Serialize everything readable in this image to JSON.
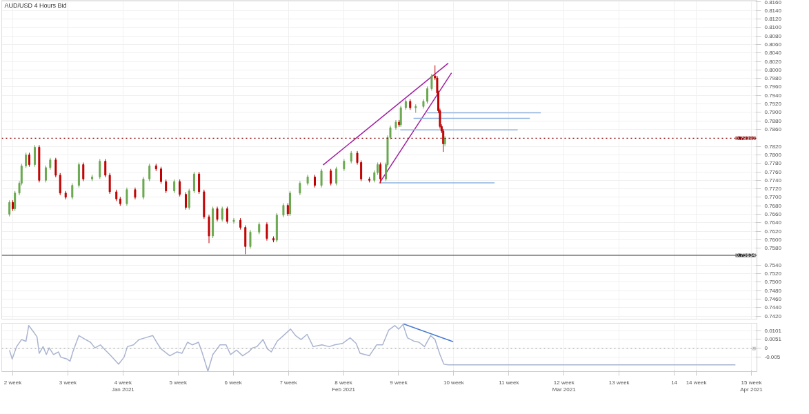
{
  "chart_data": [
    {
      "type": "candlestick",
      "title": "AUD/USD  4 Hours Bid",
      "x": [
        1.94,
        2.0,
        2.04,
        2.12,
        2.16,
        2.24,
        2.3,
        2.4,
        2.48,
        2.6,
        2.68,
        2.78,
        2.86,
        2.96,
        3.08,
        3.2,
        3.28,
        3.44,
        3.58,
        3.68,
        3.76,
        3.88,
        3.95,
        4.07,
        4.22,
        4.37,
        4.48,
        4.6,
        4.69,
        4.78,
        4.93,
        5.03,
        5.14,
        5.2,
        5.29,
        5.38,
        5.47,
        5.56,
        5.63,
        5.71,
        5.8,
        5.89,
        6.01,
        6.13,
        6.22,
        6.31,
        6.47,
        6.61,
        6.73,
        6.79,
        6.91,
        6.99,
        7.03,
        7.21,
        7.35,
        7.48,
        7.6,
        7.77,
        7.87,
        8.01,
        8.14,
        8.25,
        8.32,
        8.47,
        8.56,
        8.62,
        8.67,
        8.77,
        8.8,
        8.85,
        8.95,
        9.01,
        9.04,
        9.13,
        9.21,
        9.31,
        9.45,
        9.52,
        9.6,
        9.66,
        9.7,
        9.72,
        9.75,
        9.78,
        9.81,
        9.84
      ],
      "ohlc": [
        [
          0.766,
          0.7693,
          0.7655,
          0.7688
        ],
        [
          0.7688,
          0.7693,
          0.7668,
          0.7673
        ],
        [
          0.7673,
          0.7715,
          0.7668,
          0.771
        ],
        [
          0.771,
          0.7738,
          0.7705,
          0.7733
        ],
        [
          0.7733,
          0.7779,
          0.7728,
          0.7774
        ],
        [
          0.7774,
          0.7805,
          0.7769,
          0.78
        ],
        [
          0.78,
          0.7805,
          0.7772,
          0.7777
        ],
        [
          0.7777,
          0.7823,
          0.7772,
          0.7818
        ],
        [
          0.7818,
          0.7823,
          0.7735,
          0.774
        ],
        [
          0.774,
          0.7775,
          0.7735,
          0.777
        ],
        [
          0.777,
          0.7793,
          0.7765,
          0.7788
        ],
        [
          0.7788,
          0.7793,
          0.7747,
          0.7752
        ],
        [
          0.7752,
          0.7757,
          0.7705,
          0.771
        ],
        [
          0.771,
          0.7715,
          0.7695,
          0.77
        ],
        [
          0.77,
          0.7733,
          0.7695,
          0.7728
        ],
        [
          0.7728,
          0.7782,
          0.7723,
          0.7777
        ],
        [
          0.7777,
          0.7782,
          0.7738,
          0.7743
        ],
        [
          0.7743,
          0.7753,
          0.7738,
          0.7748
        ],
        [
          0.7748,
          0.779,
          0.7743,
          0.7785
        ],
        [
          0.7785,
          0.779,
          0.7747,
          0.7752
        ],
        [
          0.7752,
          0.7757,
          0.7708,
          0.7713
        ],
        [
          0.7713,
          0.7718,
          0.7691,
          0.7696
        ],
        [
          0.7696,
          0.7701,
          0.768,
          0.7685
        ],
        [
          0.7685,
          0.7723,
          0.768,
          0.7718
        ],
        [
          0.7718,
          0.7723,
          0.7695,
          0.77
        ],
        [
          0.77,
          0.7748,
          0.7695,
          0.7743
        ],
        [
          0.7743,
          0.7779,
          0.7738,
          0.7774
        ],
        [
          0.7774,
          0.7779,
          0.7762,
          0.7767
        ],
        [
          0.7767,
          0.7772,
          0.7732,
          0.7737
        ],
        [
          0.7737,
          0.7742,
          0.771,
          0.7715
        ],
        [
          0.7715,
          0.7742,
          0.771,
          0.7737
        ],
        [
          0.7737,
          0.7742,
          0.7702,
          0.7707
        ],
        [
          0.7707,
          0.7712,
          0.7671,
          0.7676
        ],
        [
          0.7676,
          0.772,
          0.7671,
          0.7715
        ],
        [
          0.7715,
          0.776,
          0.771,
          0.7755
        ],
        [
          0.7755,
          0.776,
          0.7708,
          0.7713
        ],
        [
          0.7713,
          0.7718,
          0.7649,
          0.7654
        ],
        [
          0.7654,
          0.7659,
          0.7592,
          0.7609
        ],
        [
          0.7609,
          0.7678,
          0.7604,
          0.7673
        ],
        [
          0.7673,
          0.7678,
          0.7643,
          0.7648
        ],
        [
          0.7648,
          0.7678,
          0.7643,
          0.7673
        ],
        [
          0.7673,
          0.7678,
          0.7638,
          0.7643
        ],
        [
          0.7643,
          0.7651,
          0.7638,
          0.7646
        ],
        [
          0.7646,
          0.7651,
          0.7624,
          0.7629
        ],
        [
          0.7629,
          0.7634,
          0.7566,
          0.7584
        ],
        [
          0.7584,
          0.7623,
          0.7579,
          0.7618
        ],
        [
          0.7618,
          0.7641,
          0.7613,
          0.7636
        ],
        [
          0.7636,
          0.7641,
          0.7598,
          0.7603
        ],
        [
          0.7603,
          0.7608,
          0.7594,
          0.7599
        ],
        [
          0.7599,
          0.7663,
          0.7594,
          0.7658
        ],
        [
          0.7658,
          0.7686,
          0.7653,
          0.7681
        ],
        [
          0.7681,
          0.7686,
          0.7656,
          0.7661
        ],
        [
          0.7661,
          0.7715,
          0.7656,
          0.771
        ],
        [
          0.771,
          0.7738,
          0.7705,
          0.7733
        ],
        [
          0.7733,
          0.7753,
          0.7728,
          0.7748
        ],
        [
          0.7748,
          0.7753,
          0.7723,
          0.7728
        ],
        [
          0.7728,
          0.7767,
          0.7723,
          0.7762
        ],
        [
          0.7762,
          0.7767,
          0.7728,
          0.7733
        ],
        [
          0.7733,
          0.7772,
          0.7728,
          0.7767
        ],
        [
          0.7767,
          0.779,
          0.7762,
          0.7785
        ],
        [
          0.7785,
          0.7809,
          0.778,
          0.7804
        ],
        [
          0.7804,
          0.7809,
          0.7777,
          0.7782
        ],
        [
          0.7782,
          0.7787,
          0.7738,
          0.7743
        ],
        [
          0.7743,
          0.7748,
          0.7735,
          0.774
        ],
        [
          0.774,
          0.7763,
          0.7735,
          0.7758
        ],
        [
          0.7758,
          0.7782,
          0.7753,
          0.7777
        ],
        [
          0.7777,
          0.7782,
          0.7733,
          0.7743
        ],
        [
          0.7743,
          0.7782,
          0.7738,
          0.7777
        ],
        [
          0.7777,
          0.7846,
          0.7772,
          0.7841
        ],
        [
          0.7841,
          0.7869,
          0.7836,
          0.7864
        ],
        [
          0.7864,
          0.7882,
          0.7859,
          0.7877
        ],
        [
          0.7877,
          0.7882,
          0.7866,
          0.7871
        ],
        [
          0.7871,
          0.7916,
          0.7866,
          0.7911
        ],
        [
          0.7911,
          0.7931,
          0.7906,
          0.7926
        ],
        [
          0.7926,
          0.7931,
          0.7906,
          0.7911
        ],
        [
          0.7911,
          0.7919,
          0.7899,
          0.7914
        ],
        [
          0.7914,
          0.7931,
          0.7909,
          0.7926
        ],
        [
          0.7926,
          0.7961,
          0.7921,
          0.7956
        ],
        [
          0.7956,
          0.7991,
          0.7951,
          0.7986
        ],
        [
          0.7986,
          0.8011,
          0.7976,
          0.7981
        ],
        [
          0.7981,
          0.7986,
          0.7941,
          0.7946
        ],
        [
          0.7946,
          0.7951,
          0.7899,
          0.7904
        ],
        [
          0.7904,
          0.7909,
          0.7862,
          0.7867
        ],
        [
          0.7867,
          0.7872,
          0.7851,
          0.7856
        ],
        [
          0.7856,
          0.7861,
          0.7807,
          0.7826
        ],
        [
          0.7826,
          0.7844,
          0.7821,
          0.7839
        ]
      ],
      "colors": [
        "#6aa84f",
        "#c00000",
        "#6aa84f",
        "#6aa84f",
        "#6aa84f",
        "#6aa84f",
        "#c00000",
        "#6aa84f",
        "#c00000",
        "#6aa84f",
        "#6aa84f",
        "#c00000",
        "#c00000",
        "#c00000",
        "#6aa84f",
        "#6aa84f",
        "#c00000",
        "#6aa84f",
        "#6aa84f",
        "#c00000",
        "#c00000",
        "#c00000",
        "#c00000",
        "#6aa84f",
        "#c00000",
        "#6aa84f",
        "#6aa84f",
        "#c00000",
        "#c00000",
        "#c00000",
        "#6aa84f",
        "#c00000",
        "#c00000",
        "#6aa84f",
        "#6aa84f",
        "#c00000",
        "#c00000",
        "#c00000",
        "#6aa84f",
        "#c00000",
        "#6aa84f",
        "#c00000",
        "#6aa84f",
        "#c00000",
        "#c00000",
        "#6aa84f",
        "#6aa84f",
        "#c00000",
        "#c00000",
        "#6aa84f",
        "#6aa84f",
        "#c00000",
        "#6aa84f",
        "#6aa84f",
        "#6aa84f",
        "#c00000",
        "#6aa84f",
        "#c00000",
        "#6aa84f",
        "#6aa84f",
        "#6aa84f",
        "#c00000",
        "#c00000",
        "#c00000",
        "#6aa84f",
        "#6aa84f",
        "#c00000",
        "#6aa84f",
        "#6aa84f",
        "#6aa84f",
        "#6aa84f",
        "#c00000",
        "#6aa84f",
        "#6aa84f",
        "#c00000",
        "#6aa84f",
        "#6aa84f",
        "#6aa84f",
        "#6aa84f",
        "#c00000",
        "#c00000",
        "#c00000",
        "#c00000",
        "#c00000",
        "#c00000",
        "#6aa84f"
      ],
      "series": [
        {
          "type": "line",
          "color": "#a020a0",
          "x": [
            7.63,
            9.9
          ],
          "values": [
            0.7776,
            0.8016
          ]
        },
        {
          "type": "line",
          "color": "#a020a0",
          "x": [
            8.65,
            9.96
          ],
          "values": [
            0.7733,
            0.7993
          ]
        },
        {
          "type": "line",
          "color": "#8fb3e0",
          "x": [
            8.65,
            10.74
          ],
          "values": [
            0.7734,
            0.7734
          ]
        },
        {
          "type": "line",
          "color": "#8fb3e0",
          "x": [
            9.03,
            11.16
          ],
          "values": [
            0.7859,
            0.7859
          ]
        },
        {
          "type": "line",
          "color": "#8fb3e0",
          "x": [
            9.27,
            11.38
          ],
          "values": [
            0.7886,
            0.7886
          ]
        },
        {
          "type": "line",
          "color": "#8fb3e0",
          "x": [
            9.51,
            11.58
          ],
          "values": [
            0.7899,
            0.7899
          ]
        }
      ],
      "ref_lines": [
        {
          "axis": "y",
          "value": 0.75634,
          "label": "0.75634",
          "color": "#333333",
          "line_style": "solid"
        },
        {
          "axis": "y",
          "value": 0.78392,
          "label": "0.78392",
          "color": "#8b0000",
          "line_style": "dotted"
        }
      ],
      "xlim": [
        1.8,
        15.5
      ],
      "ylim": [
        0.7413,
        0.8164
      ],
      "xticks": [
        {
          "value": 2,
          "label": null
        },
        {
          "value": 3,
          "label": null
        },
        {
          "value": 4,
          "label": null
        },
        {
          "value": 5,
          "label": null
        },
        {
          "value": 6,
          "label": null
        },
        {
          "value": 7,
          "label": null
        },
        {
          "value": 8,
          "label": null
        },
        {
          "value": 9,
          "label": null
        },
        {
          "value": 10,
          "label": null
        },
        {
          "value": 11,
          "label": null
        },
        {
          "value": 12,
          "label": null
        },
        {
          "value": 13,
          "label": null
        },
        {
          "value": 14,
          "label": null
        },
        {
          "value": 14.4,
          "label": null
        },
        {
          "value": 15.4,
          "label": null
        }
      ],
      "yticks": [
        {
          "value": 0.742,
          "label": "0.7420"
        },
        {
          "value": 0.744,
          "label": "0.7440"
        },
        {
          "value": 0.746,
          "label": "0.7460"
        },
        {
          "value": 0.748,
          "label": "0.7480"
        },
        {
          "value": 0.75,
          "label": "0.7500"
        },
        {
          "value": 0.752,
          "label": "0.7520"
        },
        {
          "value": 0.754,
          "label": "0.7540"
        },
        {
          "value": 0.758,
          "label": "0.7580"
        },
        {
          "value": 0.76,
          "label": "0.7600"
        },
        {
          "value": 0.762,
          "label": "0.7620"
        },
        {
          "value": 0.764,
          "label": "0.7640"
        },
        {
          "value": 0.766,
          "label": "0.7660"
        },
        {
          "value": 0.768,
          "label": "0.7680"
        },
        {
          "value": 0.77,
          "label": "0.7700"
        },
        {
          "value": 0.772,
          "label": "0.7720"
        },
        {
          "value": 0.774,
          "label": "0.7740"
        },
        {
          "value": 0.776,
          "label": "0.7760"
        },
        {
          "value": 0.778,
          "label": "0.7780"
        },
        {
          "value": 0.78,
          "label": "0.7800"
        },
        {
          "value": 0.782,
          "label": "0.7820"
        },
        {
          "value": 0.786,
          "label": "0.7860"
        },
        {
          "value": 0.788,
          "label": "0.7880"
        },
        {
          "value": 0.79,
          "label": "0.7900"
        },
        {
          "value": 0.792,
          "label": "0.7920"
        },
        {
          "value": 0.794,
          "label": "0.7940"
        },
        {
          "value": 0.796,
          "label": "0.7960"
        },
        {
          "value": 0.798,
          "label": "0.7980"
        },
        {
          "value": 0.8,
          "label": "0.8000"
        },
        {
          "value": 0.802,
          "label": "0.8020"
        },
        {
          "value": 0.804,
          "label": "0.8040"
        },
        {
          "value": 0.806,
          "label": "0.8060"
        },
        {
          "value": 0.808,
          "label": "0.8080"
        },
        {
          "value": 0.81,
          "label": "0.8100"
        },
        {
          "value": 0.812,
          "label": "0.8120"
        },
        {
          "value": 0.814,
          "label": "0.8140"
        },
        {
          "value": 0.816,
          "label": "0.8160"
        }
      ],
      "grid": true,
      "tick_labels": "y"
    },
    {
      "type": "line",
      "series": [
        {
          "color": "#a9b4d0",
          "x": [
            1.94,
            1.99,
            2.07,
            2.16,
            2.24,
            2.29,
            2.37,
            2.44,
            2.48,
            2.55,
            2.61,
            2.66,
            2.74,
            2.83,
            2.87,
            2.98,
            3.04,
            3.09,
            3.2,
            3.31,
            3.41,
            3.49,
            3.59,
            3.68,
            3.78,
            3.92,
            4.02,
            4.08,
            4.19,
            4.29,
            4.4,
            4.54,
            4.61,
            4.69,
            4.85,
            4.98,
            5.07,
            5.17,
            5.26,
            5.37,
            5.44,
            5.54,
            5.63,
            5.76,
            5.87,
            5.95,
            6.06,
            6.17,
            6.28,
            6.35,
            6.43,
            6.54,
            6.62,
            6.69,
            6.8,
            6.91,
            7.04,
            7.13,
            7.23,
            7.34,
            7.45,
            7.61,
            7.74,
            7.84,
            7.98,
            8.12,
            8.23,
            8.3,
            8.47,
            8.6,
            8.71,
            8.82,
            8.93,
            9.0,
            9.08,
            9.16,
            9.27,
            9.37,
            9.47,
            9.58,
            9.66,
            9.75,
            9.82,
            9.9,
            15.11
          ],
          "values": [
            -0.001,
            -0.006,
            0.001,
            0.005,
            0.004,
            0.013,
            0.0097,
            0.0066,
            -0.0028,
            0.001,
            -0.0035,
            0.0003,
            -0.0035,
            -0.002,
            -0.005,
            -0.006,
            -0.0073,
            -0.002,
            0.0073,
            0.0052,
            0.0035,
            0.0003,
            0.002,
            -0.001,
            -0.0042,
            -0.009,
            -0.005,
            0.001,
            0.002,
            0.005,
            0.006,
            0.0073,
            0.0035,
            -0.0003,
            -0.0042,
            -0.002,
            -0.0028,
            0.0035,
            0.002,
            0.0035,
            -0.0028,
            -0.013,
            -0.0035,
            0.002,
            0.002,
            -0.0035,
            -0.001,
            -0.0042,
            -0.002,
            0.0003,
            0.001,
            0.005,
            -0.0003,
            -0.002,
            0.0042,
            0.0073,
            0.011,
            0.0073,
            0.005,
            0.008,
            0.001,
            0.002,
            0.001,
            0.002,
            0.0028,
            0.006,
            0.0028,
            -0.0028,
            -0.0042,
            0.002,
            0.002,
            0.0104,
            0.013,
            0.011,
            0.0136,
            0.006,
            0.0042,
            0.0035,
            0.001,
            0.0073,
            0.005,
            -0.0035,
            -0.009,
            -0.0094,
            -0.0094
          ]
        },
        {
          "color": "#4a7bd0",
          "x": [
            9.09,
            9.99
          ],
          "values": [
            0.0139,
            0.0038
          ]
        }
      ],
      "ref_lines": [
        {
          "axis": "y",
          "value": 0,
          "label": "0",
          "color": "#aaaaaa",
          "line_style": "dotted"
        }
      ],
      "xlim": [
        1.8,
        15.5
      ],
      "ylim": [
        -0.0132,
        0.0143
      ],
      "xticks": [
        {
          "value": 2,
          "label": "2 week"
        },
        {
          "value": 3,
          "label": "3 week"
        },
        {
          "value": 4,
          "label": "4 week\nJan 2021"
        },
        {
          "value": 5,
          "label": "5 week"
        },
        {
          "value": 6,
          "label": "6 week"
        },
        {
          "value": 7,
          "label": "7 week"
        },
        {
          "value": 8,
          "label": "8 week\nFeb 2021"
        },
        {
          "value": 9,
          "label": "9 week"
        },
        {
          "value": 10,
          "label": "10 week"
        },
        {
          "value": 11,
          "label": "11 week"
        },
        {
          "value": 12,
          "label": "12 week\nMar 2021"
        },
        {
          "value": 13,
          "label": "13 week"
        },
        {
          "value": 14,
          "label": "14"
        },
        {
          "value": 14.4,
          "label": "14 week"
        },
        {
          "value": 15.4,
          "label": "15 week\nApr 2021"
        }
      ],
      "yticks": [
        0.0101,
        0.0051,
        0,
        -0.005
      ],
      "grid": true
    }
  ]
}
